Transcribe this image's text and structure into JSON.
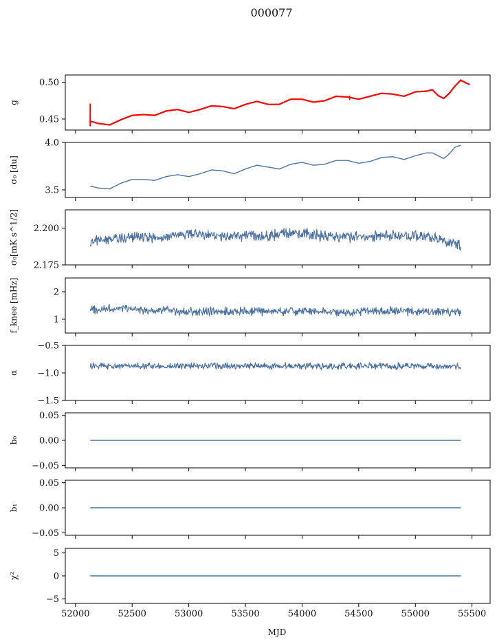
{
  "figure": {
    "title": "000077"
  },
  "colors": {
    "series": "#4c72a4",
    "overlay": "#ff0000",
    "axes": "#000000"
  },
  "chart_data": [
    {
      "type": "line",
      "key": "g",
      "ylabel": "g",
      "ylim": [
        0.435,
        0.51
      ],
      "yticks": [
        0.45,
        0.5
      ],
      "ytick_labels": [
        "0.45",
        "0.50"
      ],
      "x_range": [
        52130,
        55480
      ],
      "amplitude": 0.0,
      "x": [
        52130,
        52200,
        52300,
        52400,
        52500,
        52600,
        52700,
        52800,
        52900,
        53000,
        53100,
        53200,
        53300,
        53400,
        53500,
        53600,
        53700,
        53800,
        53900,
        54000,
        54100,
        54200,
        54300,
        54400,
        54500,
        54600,
        54700,
        54800,
        54900,
        55000,
        55100,
        55150,
        55200,
        55250,
        55300,
        55350,
        55400,
        55450,
        55480
      ],
      "y": [
        0.447,
        0.444,
        0.442,
        0.449,
        0.455,
        0.456,
        0.455,
        0.461,
        0.463,
        0.459,
        0.463,
        0.468,
        0.467,
        0.464,
        0.47,
        0.474,
        0.47,
        0.47,
        0.477,
        0.477,
        0.473,
        0.475,
        0.481,
        0.48,
        0.477,
        0.481,
        0.485,
        0.484,
        0.481,
        0.487,
        0.488,
        0.49,
        0.482,
        0.478,
        0.485,
        0.495,
        0.503,
        0.499,
        0.497
      ],
      "overlay": {
        "x": [
          52130,
          52200,
          52300,
          52400,
          52500,
          52600,
          52700,
          52800,
          52900,
          53000,
          53100,
          53200,
          53300,
          53400,
          53500,
          53600,
          53700,
          53800,
          53900,
          54000,
          54100,
          54200,
          54300,
          54400,
          54500,
          54600,
          54700,
          54800,
          54900,
          55000,
          55100,
          55150,
          55200,
          55250,
          55300,
          55350,
          55400,
          55450,
          55480
        ],
        "y": [
          0.447,
          0.444,
          0.442,
          0.449,
          0.455,
          0.456,
          0.455,
          0.461,
          0.463,
          0.459,
          0.463,
          0.468,
          0.467,
          0.464,
          0.47,
          0.474,
          0.47,
          0.47,
          0.477,
          0.477,
          0.473,
          0.475,
          0.481,
          0.48,
          0.477,
          0.481,
          0.485,
          0.484,
          0.481,
          0.487,
          0.488,
          0.49,
          0.482,
          0.478,
          0.485,
          0.495,
          0.503,
          0.499,
          0.497
        ]
      }
    },
    {
      "type": "line",
      "key": "sigma0_du",
      "ylabel": "σ₀ [du]",
      "ylim": [
        3.42,
        4.0
      ],
      "yticks": [
        3.5,
        4.0
      ],
      "ytick_labels": [
        "3.5",
        "4.0"
      ],
      "x_range": [
        52130,
        55400
      ],
      "amplitude": 0.0,
      "x": [
        52130,
        52200,
        52300,
        52400,
        52500,
        52600,
        52700,
        52800,
        52900,
        53000,
        53100,
        53200,
        53300,
        53400,
        53500,
        53600,
        53700,
        53800,
        53900,
        54000,
        54100,
        54200,
        54300,
        54400,
        54500,
        54600,
        54700,
        54800,
        54900,
        55000,
        55100,
        55150,
        55200,
        55250,
        55300,
        55350,
        55400
      ],
      "y": [
        3.54,
        3.52,
        3.51,
        3.57,
        3.61,
        3.61,
        3.6,
        3.64,
        3.66,
        3.64,
        3.67,
        3.71,
        3.7,
        3.67,
        3.72,
        3.76,
        3.74,
        3.72,
        3.77,
        3.79,
        3.76,
        3.77,
        3.81,
        3.81,
        3.78,
        3.8,
        3.84,
        3.85,
        3.82,
        3.86,
        3.89,
        3.89,
        3.86,
        3.83,
        3.88,
        3.95,
        3.97
      ]
    },
    {
      "type": "line",
      "key": "sigma0_mK",
      "ylabel": "σ₀[mK s^1/2]",
      "ylim": [
        2.175,
        2.2125
      ],
      "yticks": [
        2.175,
        2.2
      ],
      "ytick_labels": [
        "2.175",
        "2.200"
      ],
      "x_range": [
        52130,
        55400
      ],
      "amplitude": 0.0045,
      "x": [
        52130,
        52400,
        52700,
        53000,
        53300,
        53600,
        53900,
        54200,
        54500,
        54800,
        55100,
        55400
      ],
      "y": [
        2.191,
        2.193,
        2.194,
        2.196,
        2.195,
        2.194,
        2.197,
        2.195,
        2.194,
        2.195,
        2.194,
        2.189
      ]
    },
    {
      "type": "line",
      "key": "fknee",
      "ylabel": "f_knee [mHz]",
      "ylim": [
        0.5,
        2.5
      ],
      "yticks": [
        1,
        2
      ],
      "ytick_labels": [
        "1",
        "2"
      ],
      "x_range": [
        52130,
        55400
      ],
      "amplitude": 0.19,
      "x": [
        52130,
        52400,
        52700,
        53000,
        53300,
        53600,
        53900,
        54200,
        54500,
        54800,
        55100,
        55400
      ],
      "y": [
        1.35,
        1.4,
        1.3,
        1.28,
        1.3,
        1.28,
        1.3,
        1.25,
        1.28,
        1.3,
        1.28,
        1.28
      ]
    },
    {
      "type": "line",
      "key": "alpha",
      "ylabel": "α",
      "ylim": [
        -1.5,
        -0.5
      ],
      "yticks": [
        -1.5,
        -1.0,
        -0.5
      ],
      "ytick_labels": [
        "−1.5",
        "−1.0",
        "−0.5"
      ],
      "x_range": [
        52130,
        55400
      ],
      "amplitude": 0.07,
      "x": [
        52130,
        52400,
        52700,
        53000,
        53300,
        53600,
        53900,
        54200,
        54500,
        54800,
        55100,
        55400
      ],
      "y": [
        -0.88,
        -0.87,
        -0.88,
        -0.87,
        -0.88,
        -0.87,
        -0.87,
        -0.88,
        -0.87,
        -0.88,
        -0.88,
        -0.88
      ]
    },
    {
      "type": "line",
      "key": "b0",
      "ylabel": "b₀",
      "ylim": [
        -0.055,
        0.055
      ],
      "yticks": [
        -0.05,
        0.0,
        0.05
      ],
      "ytick_labels": [
        "−0.05",
        "0.00",
        "0.05"
      ],
      "x_range": [
        52130,
        55400
      ],
      "amplitude": 0.0,
      "x": [
        52130,
        55400
      ],
      "y": [
        0.0,
        0.0
      ]
    },
    {
      "type": "line",
      "key": "b1",
      "ylabel": "b₁",
      "ylim": [
        -0.055,
        0.055
      ],
      "yticks": [
        -0.05,
        0.0,
        0.05
      ],
      "ytick_labels": [
        "−0.05",
        "0.00",
        "0.05"
      ],
      "x_range": [
        52130,
        55400
      ],
      "amplitude": 0.0,
      "x": [
        52130,
        55400
      ],
      "y": [
        0.0,
        0.0
      ]
    },
    {
      "type": "line",
      "key": "chi2",
      "ylabel": "χ²",
      "ylim": [
        -6,
        6
      ],
      "yticks": [
        -5,
        0,
        5
      ],
      "ytick_labels": [
        "−5",
        "0",
        "5"
      ],
      "x_range": [
        52130,
        55400
      ],
      "amplitude": 0.0,
      "x": [
        52130,
        55400
      ],
      "y": [
        0,
        0
      ]
    }
  ],
  "x_axis": {
    "label": "MJD",
    "xlim": [
      51910,
      55660
    ],
    "ticks": [
      52000,
      52500,
      53000,
      53500,
      54000,
      54500,
      55000,
      55500
    ],
    "tick_labels": [
      "52000",
      "52500",
      "53000",
      "53500",
      "54000",
      "54500",
      "55000",
      "55500"
    ]
  }
}
